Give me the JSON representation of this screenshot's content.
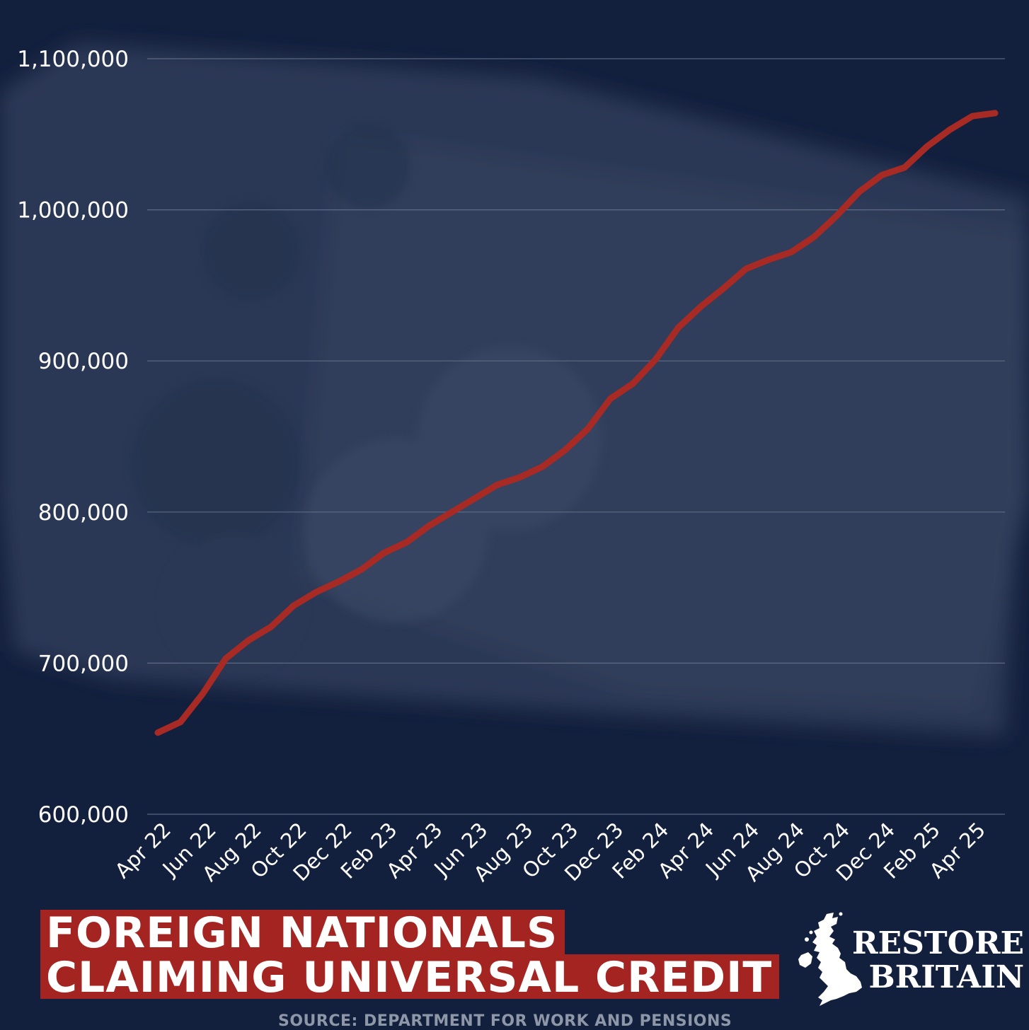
{
  "chart_data": {
    "type": "line",
    "title": "FOREIGN NATIONALS CLAIMING UNIVERSAL CREDIT",
    "title_lines": [
      "FOREIGN NATIONALS",
      "CLAIMING UNIVERSAL CREDIT"
    ],
    "source": "SOURCE: DEPARTMENT FOR WORK AND PENSIONS",
    "xlabel": "",
    "ylabel": "",
    "ylim": [
      600000,
      1100000
    ],
    "yticks": [
      600000,
      700000,
      800000,
      900000,
      1000000,
      1100000
    ],
    "ytick_labels": [
      "600,000",
      "700,000",
      "800,000",
      "900,000",
      "1,000,000",
      "1,100,000"
    ],
    "xtick_labels": [
      "Apr 22",
      "Jun 22",
      "Aug 22",
      "Oct 22",
      "Dec 22",
      "Feb 23",
      "Apr 23",
      "Jun 23",
      "Aug 23",
      "Oct 23",
      "Dec 23",
      "Feb 24",
      "Apr 24",
      "Jun 24",
      "Aug 24",
      "Oct 24",
      "Dec 24",
      "Feb 25",
      "Apr 25"
    ],
    "grid": true,
    "line_color": "#a82a24",
    "series": [
      {
        "x": [
          "Apr 22",
          "May 22",
          "Jun 22",
          "Jul 22",
          "Aug 22",
          "Sep 22",
          "Oct 22",
          "Nov 22",
          "Dec 22",
          "Jan 23",
          "Feb 23",
          "Mar 23",
          "Apr 23",
          "May 23",
          "Jun 23",
          "Jul 23",
          "Aug 23",
          "Sep 23",
          "Oct 23",
          "Nov 23",
          "Dec 23",
          "Jan 24",
          "Feb 24",
          "Mar 24",
          "Apr 24",
          "May 24",
          "Jun 24",
          "Jul 24",
          "Aug 24",
          "Sep 24",
          "Oct 24",
          "Nov 24",
          "Dec 24",
          "Jan 25",
          "Feb 25",
          "Mar 25",
          "Apr 25",
          "May 25"
        ],
        "values": [
          654000,
          661000,
          680000,
          703000,
          715000,
          724000,
          738000,
          747000,
          754000,
          762000,
          773000,
          780000,
          791000,
          800000,
          809000,
          818000,
          823000,
          830000,
          841000,
          855000,
          875000,
          885000,
          901000,
          922000,
          936000,
          948000,
          961000,
          967000,
          972000,
          982000,
          996000,
          1012000,
          1023000,
          1028000,
          1042000,
          1053000,
          1062000,
          1064000
        ]
      }
    ]
  },
  "brand": {
    "line1": "RESTORE",
    "line2": "BRITAIN",
    "logo_icon": "uk-map-icon"
  },
  "colors": {
    "background": "#13203d",
    "title_bg": "#a32420",
    "line": "#a82a24"
  }
}
